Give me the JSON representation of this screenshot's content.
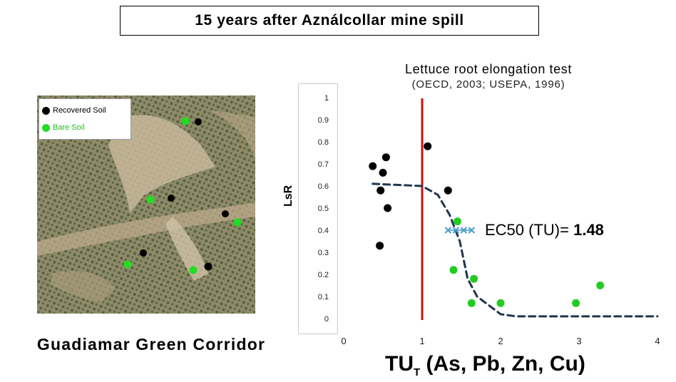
{
  "header": {
    "title": "15 years after Aználcollar mine spill"
  },
  "map": {
    "legend": [
      {
        "label": "Recovered Soil",
        "color": "#000000"
      },
      {
        "label": "Bare Soil",
        "color": "#22cc22"
      }
    ],
    "caption": "Guadiamar Green Corridor"
  },
  "chart_data": {
    "type": "scatter",
    "title": "Lettuce root elongation test",
    "subtitle": "(OECD, 2003; USEPA, 1996)",
    "ylabel": "LsR",
    "xlabel_main": "TU",
    "xlabel_sub": "T",
    "xlabel_rest": " (As, Pb, Zn, Cu)",
    "xlim": [
      0,
      4
    ],
    "ylim": [
      0,
      1
    ],
    "xticks": [
      "0",
      "1",
      "2",
      "3",
      "4"
    ],
    "yticks": [
      "0",
      "0.1",
      "0.2",
      "0.3",
      "0.4",
      "0.5",
      "0.6",
      "0.7",
      "0.8",
      "0.9",
      "1"
    ],
    "series": [
      {
        "color": "#000000",
        "points": [
          [
            0.37,
            0.69
          ],
          [
            0.47,
            0.58
          ],
          [
            0.5,
            0.66
          ],
          [
            0.54,
            0.73
          ],
          [
            0.56,
            0.5
          ],
          [
            0.46,
            0.33
          ],
          [
            1.07,
            0.78
          ],
          [
            1.33,
            0.58
          ]
        ]
      },
      {
        "color": "#22cc22",
        "points": [
          [
            1.45,
            0.44
          ],
          [
            1.4,
            0.22
          ],
          [
            1.66,
            0.18
          ],
          [
            1.63,
            0.07
          ],
          [
            2.0,
            0.07
          ],
          [
            2.96,
            0.07
          ],
          [
            3.27,
            0.15
          ]
        ]
      }
    ],
    "fit_curve": [
      [
        0.37,
        0.61
      ],
      [
        1.0,
        0.6
      ],
      [
        1.2,
        0.56
      ],
      [
        1.35,
        0.47
      ],
      [
        1.48,
        0.35
      ],
      [
        1.58,
        0.18
      ],
      [
        1.7,
        0.1
      ],
      [
        1.85,
        0.06
      ],
      [
        2.0,
        0.02
      ],
      [
        2.2,
        0.01
      ],
      [
        4.0,
        0.01
      ]
    ],
    "threshold_x": 1.0,
    "ec50": {
      "x_range": [
        1.33,
        1.63
      ],
      "y": 0.4,
      "label": "EC50 (TU)= ",
      "value": "1.48"
    }
  }
}
